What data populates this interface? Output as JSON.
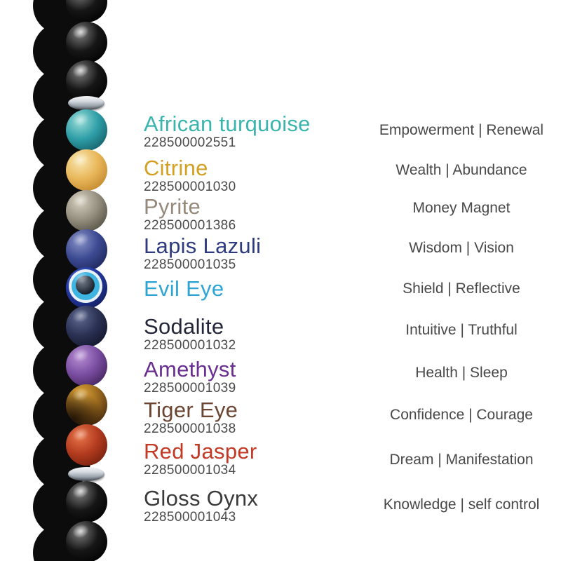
{
  "page": {
    "background": "#ffffff"
  },
  "text_colors": {
    "sku": "#4a4a4a",
    "meaning": "#484848"
  },
  "stones": [
    {
      "name": "African turquoise",
      "sku": "228500002551",
      "meaning": "Empowerment | Renewal",
      "color": "#3ab5ad"
    },
    {
      "name": "Citrine",
      "sku": "228500001030",
      "meaning": "Wealth | Abundance",
      "color": "#d3a023"
    },
    {
      "name": "Pyrite",
      "sku": "228500001386",
      "meaning": "Money Magnet",
      "color": "#96897b"
    },
    {
      "name": "Lapis Lazuli",
      "sku": "228500001035",
      "meaning": "Wisdom | Vision",
      "color": "#2e3b7e"
    },
    {
      "name": "Evil Eye",
      "sku": "",
      "meaning": "Shield | Reflective",
      "color": "#2ea4d4"
    },
    {
      "name": "Sodalite",
      "sku": "228500001032",
      "meaning": "Intuitive | Truthful",
      "color": "#232638"
    },
    {
      "name": "Amethyst",
      "sku": "228500001039",
      "meaning": "Health | Sleep",
      "color": "#6a2d91"
    },
    {
      "name": "Tiger Eye",
      "sku": "228500001038",
      "meaning": "Confidence | Courage",
      "color": "#6b4531"
    },
    {
      "name": "Red Jasper",
      "sku": "228500001034",
      "meaning": "Dream | Manifestation",
      "color": "#c23a24"
    },
    {
      "name": "Gloss Oynx",
      "sku": "228500001043",
      "meaning": "Knowledge | self control",
      "color": "#3a3a3a"
    }
  ],
  "bracelet": {
    "beads": [
      "onyx",
      "onyx",
      "onyx",
      "spacer",
      "african-turquoise",
      "citrine",
      "pyrite",
      "lapis-lazuli",
      "evil-eye",
      "sodalite",
      "amethyst",
      "tiger-eye",
      "red-jasper",
      "spacer",
      "onyx",
      "onyx"
    ],
    "bead_styles": {
      "onyx": {
        "hi": "#7d7d7d",
        "mid": "#161616",
        "lo": "#000000"
      },
      "african-turquoise": {
        "hi": "#9adcd6",
        "mid": "#2f9fa8",
        "lo": "#135a64"
      },
      "citrine": {
        "hi": "#f8e7b2",
        "mid": "#e9b75a",
        "lo": "#bf832a"
      },
      "pyrite": {
        "hi": "#d6d0c0",
        "mid": "#95907f",
        "lo": "#4e4a3e"
      },
      "lapis-lazuli": {
        "hi": "#8a94c8",
        "mid": "#3c4a92",
        "lo": "#1b2454"
      },
      "evil-eye": {
        "hi": "#3f57c2",
        "mid": "#2438a0",
        "lo": "#101c56"
      },
      "sodalite": {
        "hi": "#5f6990",
        "mid": "#2b3254",
        "lo": "#101327"
      },
      "amethyst": {
        "hi": "#b78fd4",
        "mid": "#7b4ea2",
        "lo": "#3f2158"
      },
      "tiger-eye": {
        "hi": "#e7ad3e",
        "mid": "#9c6a1e",
        "lo": "#42280e"
      },
      "red-jasper": {
        "hi": "#e9764a",
        "mid": "#b33c1f",
        "lo": "#701d0c"
      }
    },
    "evil_eye_rings": {
      "white": "#e9f1f6",
      "cyan": "#3db4e2",
      "pupil": "#1c2430",
      "pupil_hi": "#76808c"
    },
    "shadow_color": "#0c0c0c",
    "spacer_name": "silver-spacer"
  }
}
